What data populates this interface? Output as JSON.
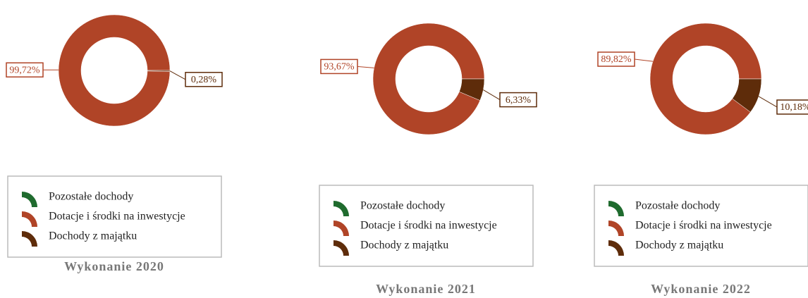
{
  "charts": [
    {
      "chart_data": {
        "type": "pie",
        "title": "Wykonanie 2020",
        "categories": [
          "Pozostałe dochody",
          "Dotacje i środki na inwestycje",
          "Dochody z majątku"
        ],
        "values": [
          0,
          99.72,
          0.28
        ],
        "value_labels": [
          null,
          "99,72%",
          "0,28%"
        ],
        "colors": [
          "#1f6b2e",
          "#b04427",
          "#5e2c0a"
        ]
      }
    },
    {
      "chart_data": {
        "type": "pie",
        "title": "Wykonanie 2021",
        "categories": [
          "Pozostałe dochody",
          "Dotacje i środki na inwestycje",
          "Dochody z majątku"
        ],
        "values": [
          0,
          93.67,
          6.33
        ],
        "value_labels": [
          null,
          "93,67%",
          "6,33%"
        ],
        "colors": [
          "#1f6b2e",
          "#b04427",
          "#5e2c0a"
        ]
      }
    },
    {
      "chart_data": {
        "type": "pie",
        "title": "Wykonanie 2022",
        "categories": [
          "Pozostałe dochody",
          "Dotacje i środki na inwestycje",
          "Dochody z majątku"
        ],
        "values": [
          0,
          89.82,
          10.18
        ],
        "value_labels": [
          null,
          "89,82%",
          "10,18%"
        ],
        "colors": [
          "#1f6b2e",
          "#b04427",
          "#5e2c0a"
        ]
      }
    }
  ]
}
